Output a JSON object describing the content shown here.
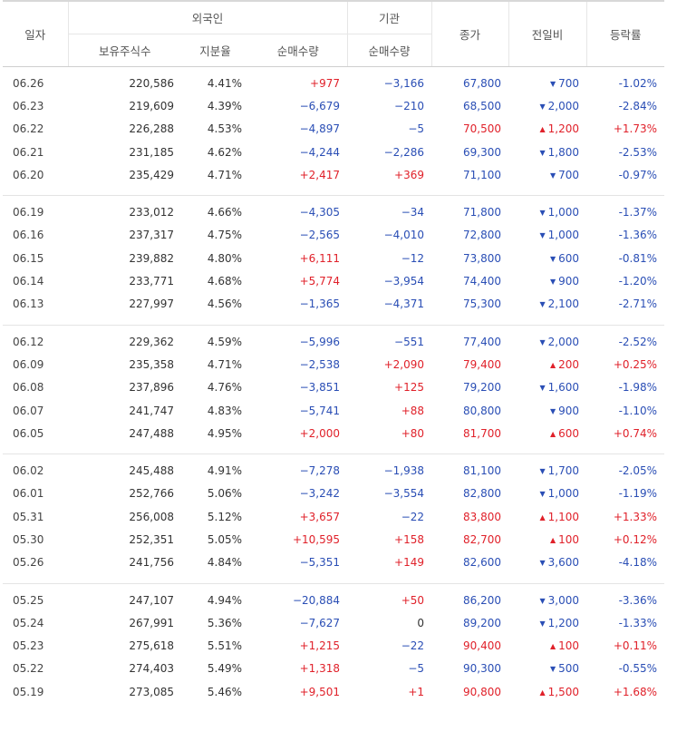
{
  "header": {
    "date": "일자",
    "foreign": "외국인",
    "institution": "기관",
    "close": "종가",
    "change": "전일비",
    "rate": "등락률",
    "holdings": "보유주식수",
    "ratio": "지분율",
    "foreign_net": "순매수량",
    "inst_net": "순매수량"
  },
  "groups": [
    [
      {
        "date": "06.26",
        "holdings": "220,586",
        "ratio": "4.41%",
        "foreign_net": "+977",
        "inst_net": "−3,166",
        "close": "67,800",
        "dir": "down",
        "change": "700",
        "rate": "-1.02%"
      },
      {
        "date": "06.23",
        "holdings": "219,609",
        "ratio": "4.39%",
        "foreign_net": "−6,679",
        "inst_net": "−210",
        "close": "68,500",
        "dir": "down",
        "change": "2,000",
        "rate": "-2.84%"
      },
      {
        "date": "06.22",
        "holdings": "226,288",
        "ratio": "4.53%",
        "foreign_net": "−4,897",
        "inst_net": "−5",
        "close": "70,500",
        "dir": "up",
        "change": "1,200",
        "rate": "+1.73%"
      },
      {
        "date": "06.21",
        "holdings": "231,185",
        "ratio": "4.62%",
        "foreign_net": "−4,244",
        "inst_net": "−2,286",
        "close": "69,300",
        "dir": "down",
        "change": "1,800",
        "rate": "-2.53%"
      },
      {
        "date": "06.20",
        "holdings": "235,429",
        "ratio": "4.71%",
        "foreign_net": "+2,417",
        "inst_net": "+369",
        "close": "71,100",
        "dir": "down",
        "change": "700",
        "rate": "-0.97%"
      }
    ],
    [
      {
        "date": "06.19",
        "holdings": "233,012",
        "ratio": "4.66%",
        "foreign_net": "−4,305",
        "inst_net": "−34",
        "close": "71,800",
        "dir": "down",
        "change": "1,000",
        "rate": "-1.37%"
      },
      {
        "date": "06.16",
        "holdings": "237,317",
        "ratio": "4.75%",
        "foreign_net": "−2,565",
        "inst_net": "−4,010",
        "close": "72,800",
        "dir": "down",
        "change": "1,000",
        "rate": "-1.36%"
      },
      {
        "date": "06.15",
        "holdings": "239,882",
        "ratio": "4.80%",
        "foreign_net": "+6,111",
        "inst_net": "−12",
        "close": "73,800",
        "dir": "down",
        "change": "600",
        "rate": "-0.81%"
      },
      {
        "date": "06.14",
        "holdings": "233,771",
        "ratio": "4.68%",
        "foreign_net": "+5,774",
        "inst_net": "−3,954",
        "close": "74,400",
        "dir": "down",
        "change": "900",
        "rate": "-1.20%"
      },
      {
        "date": "06.13",
        "holdings": "227,997",
        "ratio": "4.56%",
        "foreign_net": "−1,365",
        "inst_net": "−4,371",
        "close": "75,300",
        "dir": "down",
        "change": "2,100",
        "rate": "-2.71%"
      }
    ],
    [
      {
        "date": "06.12",
        "holdings": "229,362",
        "ratio": "4.59%",
        "foreign_net": "−5,996",
        "inst_net": "−551",
        "close": "77,400",
        "dir": "down",
        "change": "2,000",
        "rate": "-2.52%"
      },
      {
        "date": "06.09",
        "holdings": "235,358",
        "ratio": "4.71%",
        "foreign_net": "−2,538",
        "inst_net": "+2,090",
        "close": "79,400",
        "dir": "up",
        "change": "200",
        "rate": "+0.25%"
      },
      {
        "date": "06.08",
        "holdings": "237,896",
        "ratio": "4.76%",
        "foreign_net": "−3,851",
        "inst_net": "+125",
        "close": "79,200",
        "dir": "down",
        "change": "1,600",
        "rate": "-1.98%"
      },
      {
        "date": "06.07",
        "holdings": "241,747",
        "ratio": "4.83%",
        "foreign_net": "−5,741",
        "inst_net": "+88",
        "close": "80,800",
        "dir": "down",
        "change": "900",
        "rate": "-1.10%"
      },
      {
        "date": "06.05",
        "holdings": "247,488",
        "ratio": "4.95%",
        "foreign_net": "+2,000",
        "inst_net": "+80",
        "close": "81,700",
        "dir": "up",
        "change": "600",
        "rate": "+0.74%"
      }
    ],
    [
      {
        "date": "06.02",
        "holdings": "245,488",
        "ratio": "4.91%",
        "foreign_net": "−7,278",
        "inst_net": "−1,938",
        "close": "81,100",
        "dir": "down",
        "change": "1,700",
        "rate": "-2.05%"
      },
      {
        "date": "06.01",
        "holdings": "252,766",
        "ratio": "5.06%",
        "foreign_net": "−3,242",
        "inst_net": "−3,554",
        "close": "82,800",
        "dir": "down",
        "change": "1,000",
        "rate": "-1.19%"
      },
      {
        "date": "05.31",
        "holdings": "256,008",
        "ratio": "5.12%",
        "foreign_net": "+3,657",
        "inst_net": "−22",
        "close": "83,800",
        "dir": "up",
        "change": "1,100",
        "rate": "+1.33%"
      },
      {
        "date": "05.30",
        "holdings": "252,351",
        "ratio": "5.05%",
        "foreign_net": "+10,595",
        "inst_net": "+158",
        "close": "82,700",
        "dir": "up",
        "change": "100",
        "rate": "+0.12%"
      },
      {
        "date": "05.26",
        "holdings": "241,756",
        "ratio": "4.84%",
        "foreign_net": "−5,351",
        "inst_net": "+149",
        "close": "82,600",
        "dir": "down",
        "change": "3,600",
        "rate": "-4.18%"
      }
    ],
    [
      {
        "date": "05.25",
        "holdings": "247,107",
        "ratio": "4.94%",
        "foreign_net": "−20,884",
        "inst_net": "+50",
        "close": "86,200",
        "dir": "down",
        "change": "3,000",
        "rate": "-3.36%"
      },
      {
        "date": "05.24",
        "holdings": "267,991",
        "ratio": "5.36%",
        "foreign_net": "−7,627",
        "inst_net": "0",
        "close": "89,200",
        "dir": "down",
        "change": "1,200",
        "rate": "-1.33%"
      },
      {
        "date": "05.23",
        "holdings": "275,618",
        "ratio": "5.51%",
        "foreign_net": "+1,215",
        "inst_net": "−22",
        "close": "90,400",
        "dir": "up",
        "change": "100",
        "rate": "+0.11%"
      },
      {
        "date": "05.22",
        "holdings": "274,403",
        "ratio": "5.49%",
        "foreign_net": "+1,318",
        "inst_net": "−5",
        "close": "90,300",
        "dir": "down",
        "change": "500",
        "rate": "-0.55%"
      },
      {
        "date": "05.19",
        "holdings": "273,085",
        "ratio": "5.46%",
        "foreign_net": "+9,501",
        "inst_net": "+1",
        "close": "90,800",
        "dir": "up",
        "change": "1,500",
        "rate": "+1.68%"
      }
    ]
  ]
}
